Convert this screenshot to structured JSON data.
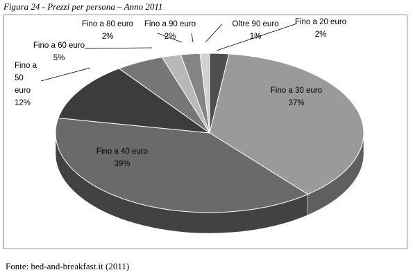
{
  "caption": "Figura 24 - Prezzi per persona – Anno 2011",
  "source": "Fonte: bed-and-breakfast.it (2011)",
  "chart_data": {
    "type": "pie",
    "title": "",
    "slices": [
      {
        "label": "Fino a 20 euro",
        "label_lines": [
          "Fino a 20 euro"
        ],
        "pct_text": "2%",
        "value": 2,
        "color": "#4e4e4e"
      },
      {
        "label": "Fino a 30 euro",
        "label_lines": [
          "Fino a 30 euro"
        ],
        "pct_text": "37%",
        "value": 37,
        "color": "#9a9a9a"
      },
      {
        "label": "Fino a 40 euro",
        "label_lines": [
          "Fino a 40 euro"
        ],
        "pct_text": "39%",
        "value": 39,
        "color": "#6a6a6a"
      },
      {
        "label": "Fino a 50 euro",
        "label_lines": [
          "Fino a",
          "50",
          "euro"
        ],
        "pct_text": "12%",
        "value": 12,
        "color": "#3c3c3c"
      },
      {
        "label": "Fino a 60 euro",
        "label_lines": [
          "Fino a 60 euro"
        ],
        "pct_text": "5%",
        "value": 5,
        "color": "#767676"
      },
      {
        "label": "Fino a 80 euro",
        "label_lines": [
          "Fino a 80 euro"
        ],
        "pct_text": "2%",
        "value": 2,
        "color": "#b8b8b8"
      },
      {
        "label": "Fino a 90 euro",
        "label_lines": [
          "Fino a 90 euro"
        ],
        "pct_text": "2%",
        "value": 2,
        "color": "#858585"
      },
      {
        "label": "Oltre 90 euro",
        "label_lines": [
          "Oltre 90 euro"
        ],
        "pct_text": "1%",
        "value": 1,
        "color": "#d2d2d2"
      }
    ]
  }
}
